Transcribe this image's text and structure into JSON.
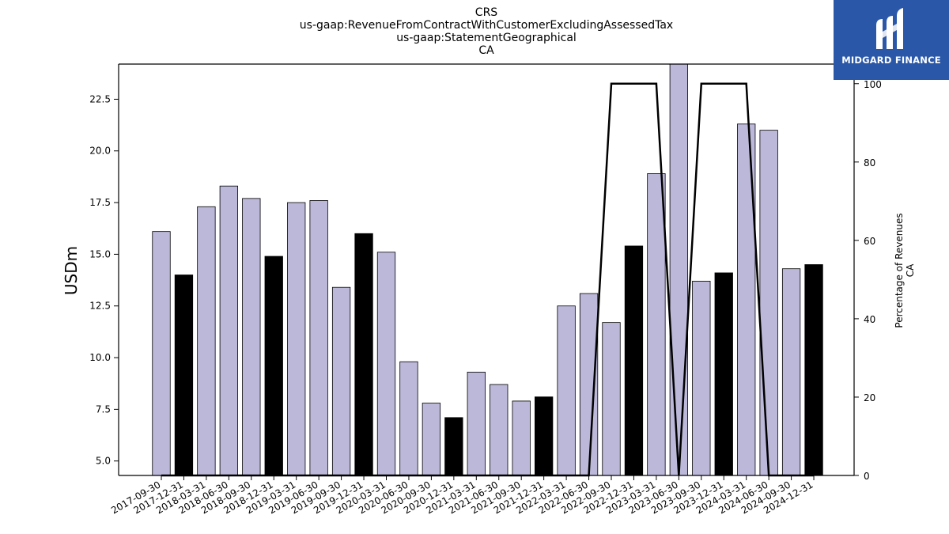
{
  "title_lines": [
    "CRS",
    "us-gaap:RevenueFromContractWithCustomerExcludingAssessedTax",
    "us-gaap:StatementGeographical",
    "CA"
  ],
  "logo": {
    "text": "MIDGARD FINANCE",
    "icon": "midgard-finance-logo-icon",
    "background": "#2a57a8"
  },
  "colors": {
    "bar_regular": "#bcb8d9",
    "bar_q4": "#000000",
    "line": "#000000"
  },
  "chart_data": {
    "type": "bar",
    "categories": [
      "2017-09-30",
      "2017-12-31",
      "2018-03-31",
      "2018-06-30",
      "2018-09-30",
      "2018-12-31",
      "2019-03-31",
      "2019-06-30",
      "2019-09-30",
      "2019-12-31",
      "2020-03-31",
      "2020-06-30",
      "2020-09-30",
      "2020-12-31",
      "2021-03-31",
      "2021-06-30",
      "2021-09-30",
      "2021-12-31",
      "2022-03-31",
      "2022-06-30",
      "2022-09-30",
      "2022-12-31",
      "2023-03-31",
      "2023-06-30",
      "2023-09-30",
      "2023-12-31",
      "2024-03-31",
      "2024-06-30",
      "2024-09-30",
      "2024-12-31"
    ],
    "values": [
      16.1,
      14.0,
      17.3,
      18.3,
      17.7,
      14.9,
      17.5,
      17.6,
      13.4,
      16.0,
      15.1,
      9.8,
      7.8,
      7.1,
      9.3,
      8.7,
      7.9,
      8.1,
      12.5,
      13.1,
      11.7,
      15.4,
      18.9,
      24.2,
      13.7,
      14.1,
      21.3,
      21.0,
      14.3,
      14.5
    ],
    "highlight_categories": [
      "2017-12-31",
      "2018-12-31",
      "2019-12-31",
      "2020-12-31",
      "2021-12-31",
      "2022-12-31",
      "2023-12-31",
      "2024-12-31"
    ],
    "percentage_line": [
      0,
      0,
      0,
      0,
      0,
      0,
      0,
      0,
      0,
      0,
      0,
      0,
      0,
      0,
      0,
      0,
      0,
      0,
      0,
      0,
      100,
      100,
      100,
      0,
      100,
      100,
      100,
      0,
      0,
      0
    ],
    "ylabel": "USDm",
    "y2label_lines": [
      "Percentage of Revenues",
      "CA"
    ],
    "ylim": [
      4.3,
      24.2
    ],
    "y2lim": [
      0,
      105
    ],
    "yticks": [
      "5.0",
      "7.5",
      "10.0",
      "12.5",
      "15.0",
      "17.5",
      "20.0",
      "22.5"
    ],
    "y2ticks": [
      "0",
      "20",
      "40",
      "60",
      "80",
      "100"
    ],
    "grid": false,
    "legend": "none"
  }
}
